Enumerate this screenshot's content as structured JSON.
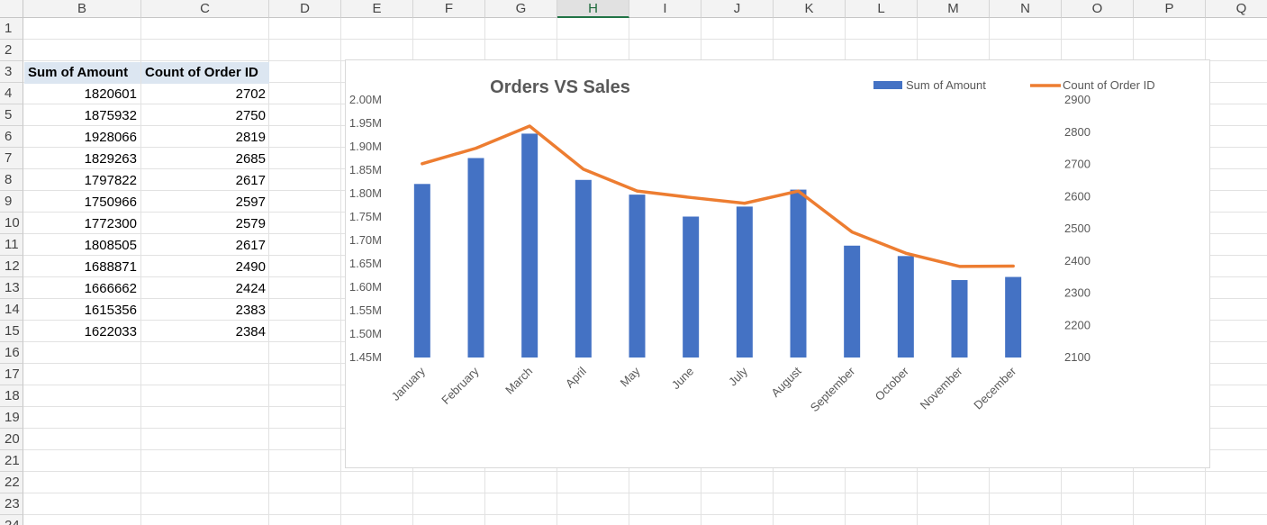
{
  "sheet": {
    "columns": [
      "B",
      "C",
      "D",
      "E",
      "F",
      "G",
      "H",
      "I",
      "J",
      "K",
      "L",
      "M",
      "N",
      "O",
      "P",
      "Q"
    ],
    "selected_column": "H",
    "rows": [
      "1",
      "2",
      "3",
      "4",
      "5",
      "6",
      "7",
      "8",
      "9",
      "10",
      "11",
      "12",
      "13",
      "14",
      "15",
      "16",
      "17",
      "18",
      "19",
      "20",
      "21",
      "22",
      "23",
      "24"
    ]
  },
  "pivot": {
    "header_amount": "Sum of Amount",
    "header_count": "Count of Order ID",
    "rows": [
      {
        "amount": "1820601",
        "count": "2702"
      },
      {
        "amount": "1875932",
        "count": "2750"
      },
      {
        "amount": "1928066",
        "count": "2819"
      },
      {
        "amount": "1829263",
        "count": "2685"
      },
      {
        "amount": "1797822",
        "count": "2617"
      },
      {
        "amount": "1750966",
        "count": "2597"
      },
      {
        "amount": "1772300",
        "count": "2579"
      },
      {
        "amount": "1808505",
        "count": "2617"
      },
      {
        "amount": "1688871",
        "count": "2490"
      },
      {
        "amount": "1666662",
        "count": "2424"
      },
      {
        "amount": "1615356",
        "count": "2383"
      },
      {
        "amount": "1622033",
        "count": "2384"
      }
    ]
  },
  "chart_data": {
    "type": "bar",
    "title": "Orders VS Sales",
    "categories": [
      "January",
      "February",
      "March",
      "April",
      "May",
      "June",
      "July",
      "August",
      "September",
      "October",
      "November",
      "December"
    ],
    "series": [
      {
        "name": "Sum of Amount",
        "type": "bar",
        "axis": "primary",
        "color": "#4472c4",
        "values": [
          1820601,
          1875932,
          1928066,
          1829263,
          1797822,
          1750966,
          1772300,
          1808505,
          1688871,
          1666662,
          1615356,
          1622033
        ]
      },
      {
        "name": "Count of Order ID",
        "type": "line",
        "axis": "secondary",
        "color": "#ed7d31",
        "values": [
          2702,
          2750,
          2819,
          2685,
          2617,
          2597,
          2579,
          2617,
          2490,
          2424,
          2383,
          2384
        ]
      }
    ],
    "ylim": [
      1450000,
      2000000
    ],
    "yticks": [
      "1.45M",
      "1.50M",
      "1.55M",
      "1.60M",
      "1.65M",
      "1.70M",
      "1.75M",
      "1.80M",
      "1.85M",
      "1.90M",
      "1.95M",
      "2.00M"
    ],
    "y2lim": [
      2100,
      2900
    ],
    "y2ticks": [
      "2100",
      "2200",
      "2300",
      "2400",
      "2500",
      "2600",
      "2700",
      "2800",
      "2900"
    ],
    "legend": "top-right",
    "grid": false
  },
  "colors": {
    "bar": "#4472c4",
    "line": "#ed7d31",
    "header_fill": "#dce6f1",
    "selected_col": "#217346"
  }
}
